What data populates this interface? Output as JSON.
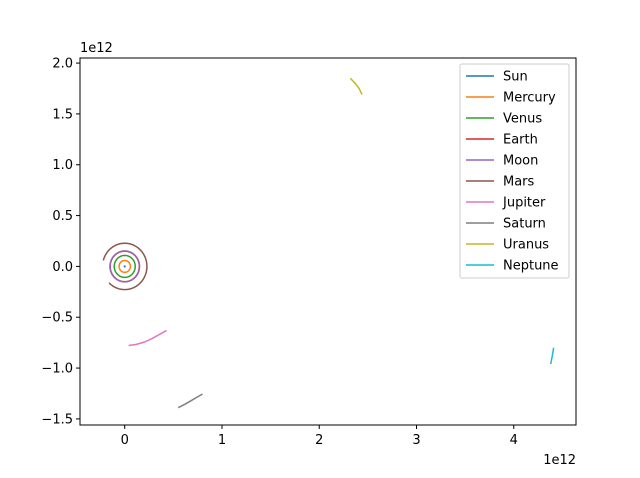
{
  "chart_data": {
    "type": "line",
    "title": "",
    "xlabel": "",
    "ylabel": "",
    "x_offset_label": "1e12",
    "y_offset_label": "1e12",
    "xlim": [
      -0.46,
      4.64
    ],
    "ylim": [
      -1.56,
      2.05
    ],
    "x_ticks": [
      0,
      1,
      2,
      3,
      4
    ],
    "x_tick_labels": [
      "0",
      "1",
      "2",
      "3",
      "4"
    ],
    "y_ticks": [
      -1.5,
      -1.0,
      -0.5,
      0.0,
      0.5,
      1.0,
      1.5,
      2.0
    ],
    "y_tick_labels": [
      "−1.5",
      "−1.0",
      "−0.5",
      "0.0",
      "0.5",
      "1.0",
      "1.5",
      "2.0"
    ],
    "legend_position": "top-right",
    "grid": false,
    "series": [
      {
        "name": "Sun",
        "color": "#1f77b4",
        "shape": "ellipse",
        "cx": 0.0,
        "cy": 0.0,
        "rx": 0.003,
        "ry": 0.003,
        "start_deg": 0,
        "end_deg": 360
      },
      {
        "name": "Mercury",
        "color": "#ff7f0e",
        "shape": "ellipse",
        "cx": 0.0,
        "cy": 0.0,
        "rx": 0.058,
        "ry": 0.058,
        "start_deg": 0,
        "end_deg": 360
      },
      {
        "name": "Venus",
        "color": "#2ca02c",
        "shape": "ellipse",
        "cx": 0.0,
        "cy": 0.0,
        "rx": 0.108,
        "ry": 0.108,
        "start_deg": 0,
        "end_deg": 360
      },
      {
        "name": "Earth",
        "color": "#d62728",
        "shape": "ellipse",
        "cx": 0.0,
        "cy": 0.0,
        "rx": 0.15,
        "ry": 0.15,
        "start_deg": 0,
        "end_deg": 360
      },
      {
        "name": "Moon",
        "color": "#9467bd",
        "shape": "ellipse",
        "cx": 0.0,
        "cy": 0.0,
        "rx": 0.152,
        "ry": 0.152,
        "start_deg": 0,
        "end_deg": 360
      },
      {
        "name": "Mars",
        "color": "#8c564b",
        "shape": "ellipse",
        "cx": 0.0,
        "cy": 0.0,
        "rx": 0.228,
        "ry": 0.228,
        "start_deg": -135,
        "end_deg": 165
      },
      {
        "name": "Jupiter",
        "color": "#e377c2",
        "shape": "points",
        "x": [
          0.04,
          0.12,
          0.2,
          0.28,
          0.36,
          0.43
        ],
        "y": [
          -0.778,
          -0.767,
          -0.745,
          -0.71,
          -0.668,
          -0.63
        ]
      },
      {
        "name": "Saturn",
        "color": "#7f7f7f",
        "shape": "points",
        "x": [
          0.55,
          0.62,
          0.68,
          0.74,
          0.8
        ],
        "y": [
          -1.39,
          -1.355,
          -1.322,
          -1.288,
          -1.255
        ]
      },
      {
        "name": "Uranus",
        "color": "#bcbd22",
        "shape": "points",
        "x": [
          2.32,
          2.37,
          2.41,
          2.44
        ],
        "y": [
          1.85,
          1.8,
          1.75,
          1.69
        ]
      },
      {
        "name": "Neptune",
        "color": "#17becf",
        "shape": "points",
        "x": [
          4.38,
          4.39,
          4.4,
          4.41
        ],
        "y": [
          -0.96,
          -0.91,
          -0.86,
          -0.8
        ]
      }
    ]
  }
}
